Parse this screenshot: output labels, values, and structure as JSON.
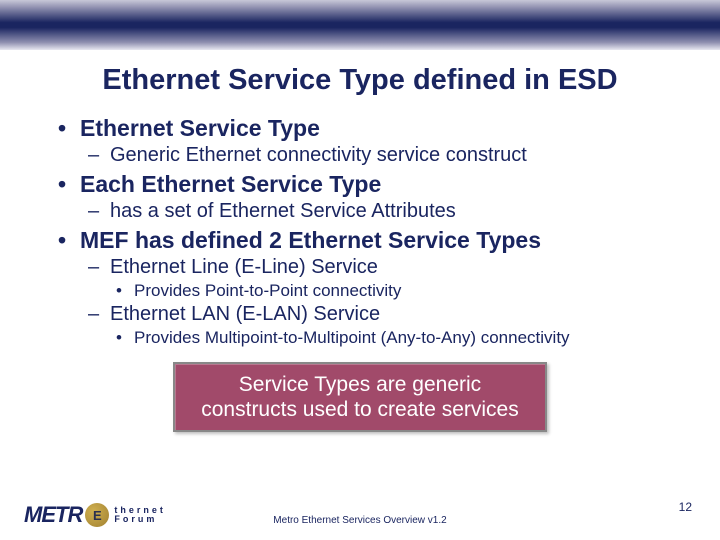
{
  "title": "Ethernet Service Type defined in ESD",
  "bullets": {
    "b1": "Ethernet Service Type",
    "b1_1": "Generic Ethernet connectivity service construct",
    "b2": "Each Ethernet Service Type",
    "b2_1": "has a set of Ethernet Service Attributes",
    "b3": "MEF has defined 2 Ethernet Service Types",
    "b3_1": "Ethernet Line (E-Line) Service",
    "b3_1_1": "Provides Point-to-Point connectivity",
    "b3_2": "Ethernet LAN (E-LAN) Service",
    "b3_2_1": "Provides Multipoint-to-Multipoint (Any-to-Any) connectivity"
  },
  "callout": {
    "line1": "Service Types are generic",
    "line2": "constructs used to create services",
    "bg_color": "#a14a6a",
    "text_color": "#ffffff"
  },
  "footer": {
    "logo_metro": "METR",
    "logo_circle": "E",
    "logo_line1": "thernet",
    "logo_line2": "Forum",
    "center": "Metro Ethernet Services Overview v1.2",
    "page": "12"
  },
  "colors": {
    "brand_navy": "#1a2560",
    "band_mid": "#9090b0",
    "callout_bg": "#a14a6a"
  }
}
